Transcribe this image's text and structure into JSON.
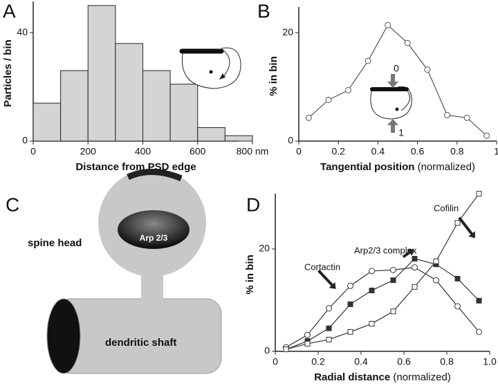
{
  "chart_data": [
    {
      "type": "histogram",
      "panel": "A",
      "bins": [
        0,
        100,
        200,
        300,
        400,
        500,
        600,
        700,
        800
      ],
      "values": [
        14,
        26,
        50,
        36,
        26,
        21,
        5,
        2
      ],
      "color": "#d4d4d4",
      "xlabel": "Distance from PSD edge",
      "ylabel": "Particles / bin",
      "xlim": [
        0,
        800
      ],
      "xticks": [
        0,
        200,
        400,
        600,
        {
          "value": 800,
          "label": "800 nm"
        }
      ],
      "ylim": [
        0,
        50
      ],
      "yticks": [
        0,
        40
      ]
    },
    {
      "type": "line",
      "panel": "B",
      "x": [
        0.05,
        0.15,
        0.25,
        0.35,
        0.45,
        0.55,
        0.65,
        0.75,
        0.85,
        0.95
      ],
      "series": [
        {
          "values": [
            4.3,
            7.6,
            9.4,
            14.8,
            21.4,
            18.1,
            13.2,
            4.8,
            4.3,
            1.0
          ],
          "color": "#555555",
          "marker": "circle-open"
        }
      ],
      "xlabel": "Tangential position",
      "xlabel_note": "(normalized)",
      "ylabel": "% in bin",
      "inset_labels": [
        "0",
        "1"
      ],
      "xlim": [
        0,
        1
      ],
      "xticks": [
        0,
        0.2,
        0.4,
        0.6,
        0.8,
        1
      ],
      "ylim": [
        0,
        24
      ],
      "yticks": [
        0,
        20
      ]
    },
    {
      "type": "line",
      "panel": "D",
      "x": [
        0.05,
        0.15,
        0.25,
        0.35,
        0.45,
        0.55,
        0.65,
        0.75,
        0.85,
        0.95
      ],
      "series": [
        {
          "name": "Cortactin",
          "values": [
            0.8,
            3.2,
            8.4,
            12.8,
            15.7,
            15.9,
            16.4,
            13.9,
            8.8,
            3.8
          ],
          "color": "#333333",
          "marker": "circle-open"
        },
        {
          "name": "Arp2/3 complex",
          "values": [
            0.4,
            2.0,
            4.5,
            9.2,
            11.9,
            13.9,
            18.1,
            17.0,
            14.2,
            9.9
          ],
          "color": "#333333",
          "marker": "square-filled"
        },
        {
          "name": "Cofilin",
          "values": [
            0.4,
            1.5,
            2.3,
            3.8,
            5.4,
            7.8,
            12.6,
            17.6,
            25.1,
            30.8
          ],
          "color": "#333333",
          "marker": "square-open"
        }
      ],
      "xlabel": "Radial distance",
      "xlabel_note": "(normalized)",
      "ylabel": "% in bin",
      "xlim": [
        0,
        1
      ],
      "xticks": [
        0,
        0.2,
        0.4,
        0.6,
        0.8,
        {
          "value": 1,
          "label": "1.0"
        }
      ],
      "ylim": [
        0,
        30
      ],
      "yticks": [
        0,
        20
      ]
    }
  ],
  "diagram": {
    "panel": "C",
    "spine_head": "spine head",
    "arp": "Arp 2/3",
    "shaft": "dendritic shaft"
  }
}
